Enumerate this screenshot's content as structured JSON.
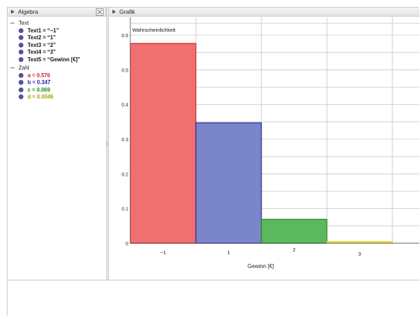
{
  "algebra": {
    "title": "Algebra",
    "groups": [
      {
        "label": "Text",
        "items": [
          {
            "text": "Text1 = “−1”",
            "color": "#111111"
          },
          {
            "text": "Text2 = “1”",
            "color": "#111111"
          },
          {
            "text": "Text3 = “2”",
            "color": "#111111"
          },
          {
            "text": "Text4 = “3”",
            "color": "#111111"
          },
          {
            "text": "Text5 = “Gewinn [€]”",
            "color": "#111111"
          }
        ]
      },
      {
        "label": "Zahl",
        "items": [
          {
            "text": "a = 0.576",
            "color": "#d42020"
          },
          {
            "text": "b = 0.347",
            "color": "#2424a8"
          },
          {
            "text": "c = 0.069",
            "color": "#1a8a1a"
          },
          {
            "text": "d = 0.0046",
            "color": "#a8a000"
          }
        ]
      }
    ]
  },
  "grafik": {
    "title": "Grafik"
  },
  "chart_data": {
    "type": "bar",
    "title": "Wahrscheinlichkeit",
    "categories": [
      "−1",
      "1",
      "2",
      "3"
    ],
    "values": [
      0.576,
      0.347,
      0.069,
      0.0046
    ],
    "colors": [
      "#f07070",
      "#7b86c8",
      "#5cb85c",
      "#f2e84a"
    ],
    "edge_colors": [
      "#d42020",
      "#2424a8",
      "#1a8a1a",
      "#e0d020"
    ],
    "xlabel": "Gewinn [€]",
    "ylabel": "",
    "ylim": [
      0,
      0.6
    ],
    "yticks": [
      "0",
      "0.1",
      "0.2",
      "0.3",
      "0.4",
      "0.5",
      "0.6"
    ],
    "grid": true
  }
}
